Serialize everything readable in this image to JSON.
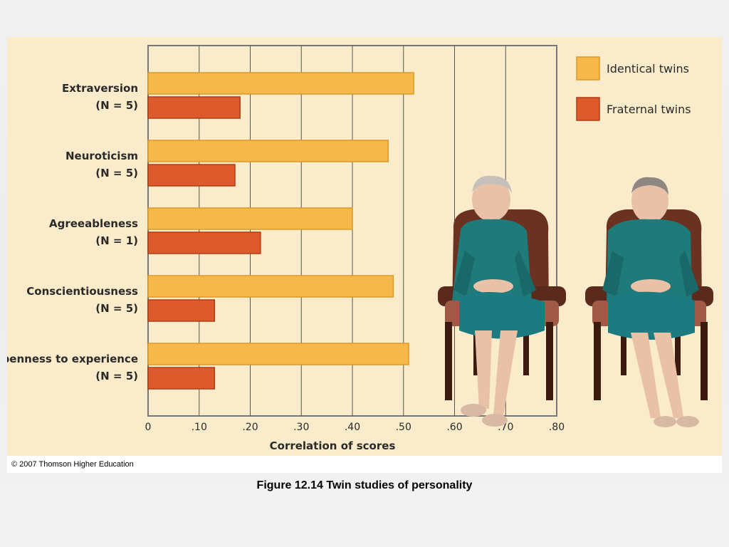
{
  "copyright": "© 2007 Thomson Higher Education",
  "caption": "Figure 12.14  Twin studies of personality",
  "colors": {
    "identical": "#f6b84a",
    "fraternal": "#dc5a2b",
    "panel_bg": "#faeccb",
    "grid": "#555555"
  },
  "photo": {
    "description": "photo-of-elderly-twin-sisters-seated-in-chairs",
    "icons": [
      "twin-woman-smiling",
      "twin-woman-serious"
    ]
  },
  "chart_data": {
    "type": "bar",
    "orientation": "horizontal",
    "categories": [
      {
        "name": "Extraversion",
        "n": "(N = 5)"
      },
      {
        "name": "Neuroticism",
        "n": "(N = 5)"
      },
      {
        "name": "Agreeableness",
        "n": "(N = 1)"
      },
      {
        "name": "Conscientiousness",
        "n": "(N = 5)"
      },
      {
        "name": "Openness to experience",
        "n": "(N = 5)"
      }
    ],
    "series": [
      {
        "name": "Identical twins",
        "values": [
          0.52,
          0.47,
          0.4,
          0.48,
          0.51
        ]
      },
      {
        "name": "Fraternal twins",
        "values": [
          0.18,
          0.17,
          0.22,
          0.13,
          0.13
        ]
      }
    ],
    "xlabel": "Correlation of scores",
    "xlim": [
      0,
      0.8
    ],
    "ticks": [
      0,
      0.1,
      0.2,
      0.3,
      0.4,
      0.5,
      0.6,
      0.7,
      0.8
    ],
    "tick_labels": [
      "0",
      ".10",
      ".20",
      ".30",
      ".40",
      ".50",
      ".60",
      ".70",
      ".80"
    ],
    "grid": true,
    "legend_position": "top-right"
  }
}
